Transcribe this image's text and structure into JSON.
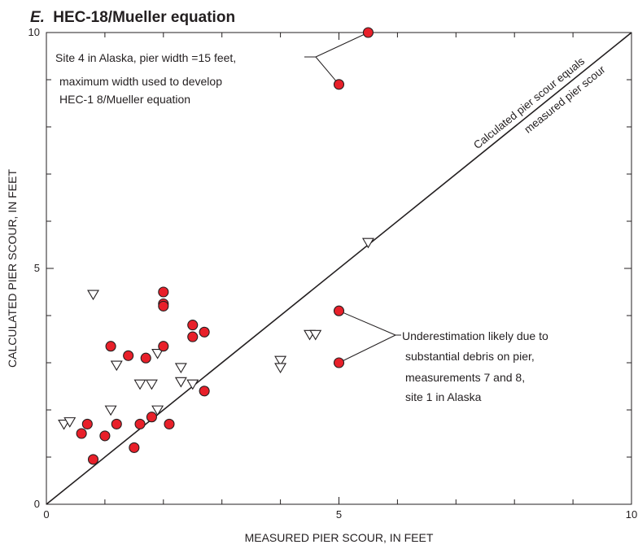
{
  "chart_data": {
    "type": "scatter",
    "title_letter": "E.",
    "title": "HEC-18/Mueller equation",
    "xlabel": "MEASURED PIER SCOUR, IN FEET",
    "ylabel": "CALCULATED PIER SCOUR, IN FEET",
    "xlim": [
      0,
      10
    ],
    "ylim": [
      0,
      10
    ],
    "xticks_labeled": [
      0,
      5,
      10
    ],
    "yticks_labeled": [
      0,
      5,
      10
    ],
    "minor_tick_step": 1,
    "grid": false,
    "equality_line": {
      "from": [
        0,
        0
      ],
      "to": [
        10,
        10
      ],
      "label_top": "Calculated pier scour equals",
      "label_bottom": "measured pier scour"
    },
    "series": [
      {
        "marker": "filled-circle",
        "color": "#e8202a",
        "points": [
          [
            5.5,
            10.0
          ],
          [
            5.0,
            8.9
          ],
          [
            5.0,
            4.1
          ],
          [
            5.0,
            3.0
          ],
          [
            0.6,
            1.5
          ],
          [
            0.7,
            1.7
          ],
          [
            0.8,
            0.95
          ],
          [
            1.0,
            1.45
          ],
          [
            1.1,
            3.35
          ],
          [
            1.2,
            1.7
          ],
          [
            1.4,
            3.15
          ],
          [
            1.5,
            1.2
          ],
          [
            1.6,
            1.7
          ],
          [
            1.7,
            3.1
          ],
          [
            1.8,
            1.85
          ],
          [
            2.0,
            4.5
          ],
          [
            2.0,
            4.25
          ],
          [
            2.0,
            4.2
          ],
          [
            2.0,
            3.35
          ],
          [
            2.1,
            1.7
          ],
          [
            2.5,
            3.8
          ],
          [
            2.5,
            3.55
          ],
          [
            2.7,
            3.65
          ],
          [
            2.7,
            2.4
          ]
        ]
      },
      {
        "marker": "open-triangle-down",
        "color": "#ffffff",
        "points": [
          [
            0.3,
            1.7
          ],
          [
            0.4,
            1.75
          ],
          [
            0.8,
            4.45
          ],
          [
            1.1,
            2.0
          ],
          [
            1.2,
            2.95
          ],
          [
            1.6,
            2.55
          ],
          [
            1.8,
            2.55
          ],
          [
            1.9,
            2.0
          ],
          [
            1.9,
            3.2
          ],
          [
            2.3,
            2.9
          ],
          [
            2.3,
            2.6
          ],
          [
            2.5,
            2.55
          ],
          [
            4.0,
            3.05
          ],
          [
            4.0,
            2.9
          ],
          [
            4.5,
            3.6
          ],
          [
            4.6,
            3.6
          ],
          [
            5.5,
            5.55
          ]
        ]
      }
    ],
    "annotations": [
      {
        "lines": [
          "Site 4 in Alaska, pier width =15 feet,",
          "maximum width used to develop",
          "HEC-1 8/Mueller equation"
        ],
        "points": [
          [
            5.5,
            10.0
          ],
          [
            5.0,
            8.9
          ]
        ]
      },
      {
        "lines": [
          "Underestimation likely due to",
          "substantial debris on pier,",
          "measurements 7 and  8,",
          "site 1 in Alaska"
        ],
        "points": [
          [
            5.0,
            4.1
          ],
          [
            5.0,
            3.0
          ]
        ]
      }
    ]
  }
}
